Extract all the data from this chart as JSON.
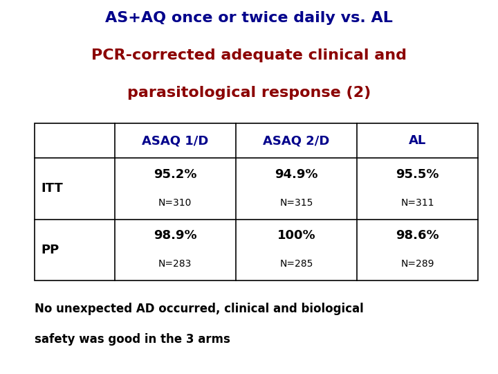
{
  "title_line1": "AS+AQ once or twice daily vs. AL",
  "title_line2": "PCR-corrected adequate clinical and",
  "title_line3": "parasitological response (2)",
  "title_color_blue": "#00008B",
  "title_color_red": "#8B0000",
  "col_headers": [
    "ASAQ 1/D",
    "ASAQ 2/D",
    "AL"
  ],
  "col_header_color": "#00008B",
  "row_labels": [
    "ITT",
    "PP"
  ],
  "row_label_color": "#000000",
  "main_values": [
    [
      "95.2%",
      "94.9%",
      "95.5%"
    ],
    [
      "98.9%",
      "100%",
      "98.6%"
    ]
  ],
  "sub_values": [
    [
      "N=310",
      "N=315",
      "N=311"
    ],
    [
      "N=283",
      "N=285",
      "N=289"
    ]
  ],
  "main_value_color": "#000000",
  "sub_value_color": "#000000",
  "footnote_line1": "No unexpected AD occurred, clinical and biological",
  "footnote_line2": "safety was good in the 3 arms",
  "footnote_color": "#000000",
  "bg_color": "#ffffff",
  "table_border_color": "#000000"
}
